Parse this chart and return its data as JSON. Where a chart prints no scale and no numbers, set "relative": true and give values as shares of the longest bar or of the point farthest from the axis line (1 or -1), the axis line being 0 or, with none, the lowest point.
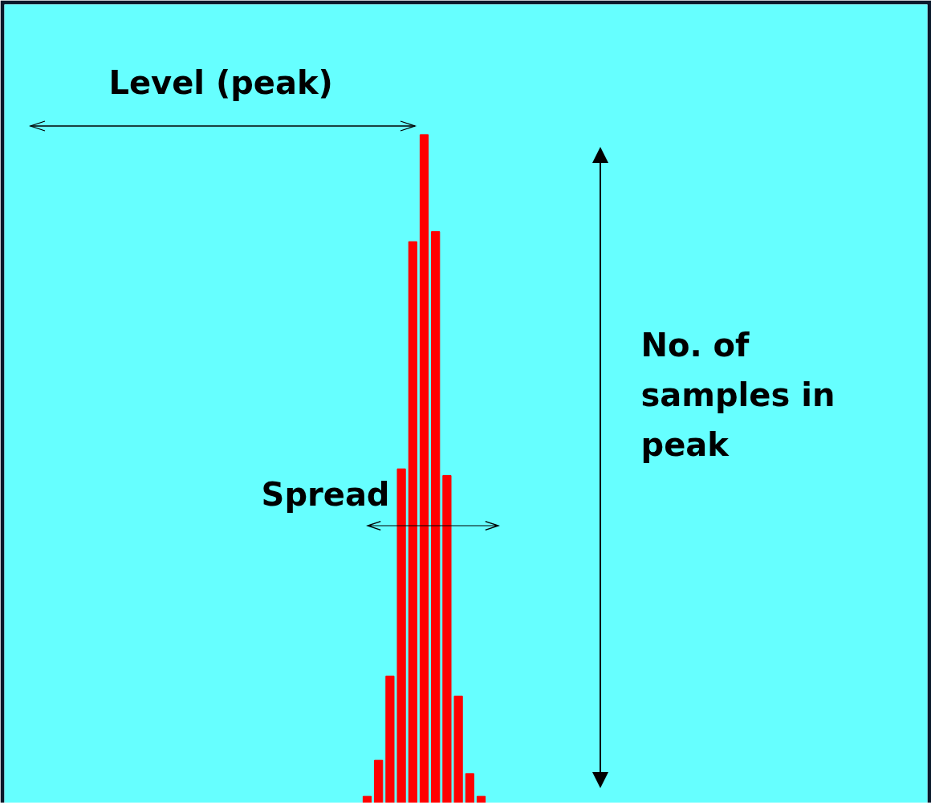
{
  "chart_data": {
    "type": "bar",
    "relative": true,
    "categories": [
      null,
      null,
      null,
      null,
      null,
      null,
      null,
      null,
      null,
      null,
      null
    ],
    "values": [
      0.01,
      0.064,
      0.19,
      0.5,
      0.84,
      1,
      0.855,
      0.49,
      0.16,
      0.044,
      0.01
    ],
    "color": "#ff0000",
    "annotations": [
      "Level (peak)",
      "Spread",
      "No. of samples in peak"
    ]
  }
}
